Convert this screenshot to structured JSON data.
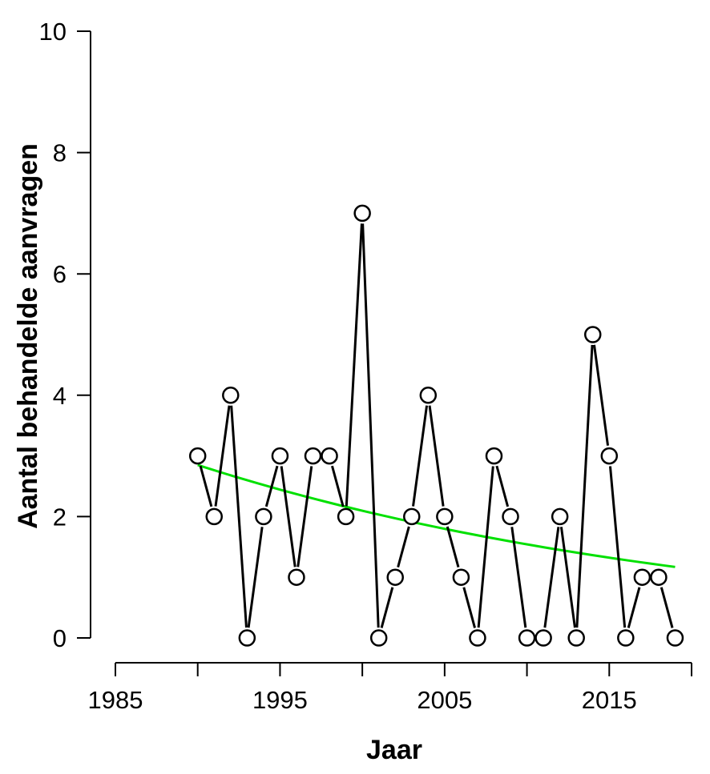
{
  "chart_data": {
    "type": "line",
    "title": "",
    "xlabel": "Jaar",
    "ylabel": "Aantal behandelde aanvragen",
    "xlim": [
      1985,
      2020
    ],
    "ylim": [
      0,
      10
    ],
    "x_ticks": [
      1985,
      1990,
      1995,
      2000,
      2005,
      2010,
      2015,
      2020
    ],
    "x_tick_labels": [
      "1985",
      "",
      "1995",
      "",
      "2005",
      "",
      "2015",
      ""
    ],
    "y_ticks": [
      0,
      2,
      4,
      6,
      8,
      10
    ],
    "y_tick_labels": [
      "0",
      "2",
      "4",
      "6",
      "8",
      "10"
    ],
    "grid": false,
    "series": [
      {
        "color": "#000000",
        "marker": "open-circle",
        "x": [
          1990,
          1991,
          1992,
          1993,
          1994,
          1995,
          1996,
          1997,
          1998,
          1999,
          2000,
          2001,
          2002,
          2003,
          2004,
          2005,
          2006,
          2007,
          2008,
          2009,
          2010,
          2011,
          2012,
          2013,
          2014,
          2015,
          2016,
          2017,
          2018,
          2019
        ],
        "y": [
          3,
          2,
          4,
          0,
          2,
          3,
          1,
          3,
          3,
          2,
          7,
          0,
          1,
          2,
          4,
          2,
          1,
          0,
          3,
          2,
          0,
          0,
          2,
          0,
          5,
          3,
          0,
          1,
          1,
          0
        ]
      }
    ],
    "trend": {
      "color": "#00e000",
      "x": [
        1990,
        2019
      ],
      "y": [
        2.85,
        1.17
      ]
    }
  }
}
